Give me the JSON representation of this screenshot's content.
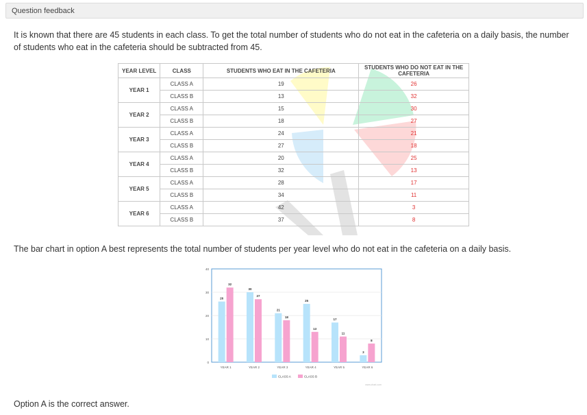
{
  "header": {
    "title": "Question feedback"
  },
  "feedback": {
    "intro": "It is known that there are 45 students in each class. To get the total number of students who do not eat in the cafeteria on a daily basis, the number of students who eat in the cafeteria should be subtracted from 45.",
    "conclusion": "The bar chart in option A best represents the total number of students per year level who do not eat in the cafeteria on a daily basis.",
    "answer": "Option A is the correct answer."
  },
  "table": {
    "headers": [
      "YEAR LEVEL",
      "CLASS",
      "STUDENTS WHO EAT IN THE CAFETERIA",
      "STUDENTS WHO DO NOT EAT IN THE CAFETERIA"
    ],
    "rows": [
      {
        "year": "YEAR 1",
        "classes": [
          [
            "CLASS A",
            "19",
            "26"
          ],
          [
            "CLASS B",
            "13",
            "32"
          ]
        ]
      },
      {
        "year": "YEAR 2",
        "classes": [
          [
            "CLASS A",
            "15",
            "30"
          ],
          [
            "CLASS B",
            "18",
            "27"
          ]
        ]
      },
      {
        "year": "YEAR 3",
        "classes": [
          [
            "CLASS A",
            "24",
            "21"
          ],
          [
            "CLASS B",
            "27",
            "18"
          ]
        ]
      },
      {
        "year": "YEAR 4",
        "classes": [
          [
            "CLASS A",
            "20",
            "25"
          ],
          [
            "CLASS B",
            "32",
            "13"
          ]
        ]
      },
      {
        "year": "YEAR 5",
        "classes": [
          [
            "CLASS A",
            "28",
            "17"
          ],
          [
            "CLASS B",
            "34",
            "11"
          ]
        ]
      },
      {
        "year": "YEAR 6",
        "classes": [
          [
            "CLASS A",
            "42",
            "3"
          ],
          [
            "CLASS B",
            "37",
            "8"
          ]
        ]
      }
    ],
    "accent_red": "#e03030"
  },
  "chart_data": {
    "type": "bar",
    "categories": [
      "YEAR 1",
      "YEAR 2",
      "YEAR 3",
      "YEAR 4",
      "YEAR 5",
      "YEAR 6"
    ],
    "series": [
      {
        "name": "CLASS A",
        "values": [
          26,
          30,
          21,
          25,
          17,
          3
        ],
        "color": "#b7e3fb"
      },
      {
        "name": "CLASS B",
        "values": [
          32,
          27,
          18,
          13,
          11,
          8
        ],
        "color": "#f6a3cf"
      }
    ],
    "yticks": [
      "0",
      "10",
      "20",
      "30",
      "40"
    ],
    "ylim": [
      0,
      40
    ],
    "grid": true,
    "legend": "bottom",
    "credit": "www.chart.com"
  }
}
